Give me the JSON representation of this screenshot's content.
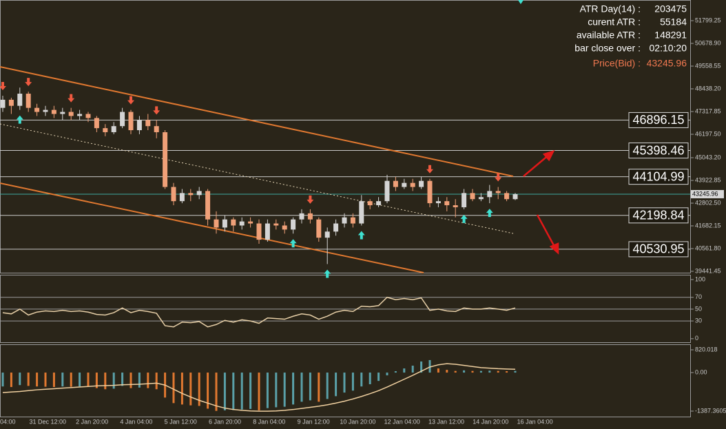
{
  "chart_data": {
    "type": "candlestick",
    "info": [
      {
        "label": "ATR Day(14) :",
        "value": 203475
      },
      {
        "label": "curent ATR :",
        "value": 55184
      },
      {
        "label": "available ATR :",
        "value": 148291
      },
      {
        "label": "bar close over :",
        "value": "02:10:20"
      }
    ],
    "price_label": "Price(Bid) :",
    "price": 43245.96,
    "ylim": [
      39340,
      52818
    ],
    "yticks": [
      51799.25,
      {
        "value": 50678.9,
        "label": "50678.90"
      },
      49558.55,
      {
        "value": 48438.2,
        "label": "48438.20"
      },
      47317.85,
      {
        "value": 46197.5,
        "label": "46197.50"
      },
      {
        "value": 45043.2,
        "label": "45043.20"
      },
      43922.85,
      {
        "value": 42802.5,
        "label": "42802.50"
      },
      41682.15,
      {
        "value": 40561.8,
        "label": "40561.80"
      },
      39441.45
    ],
    "levels": [
      46896.15,
      45398.46,
      44104.99,
      42198.84,
      40530.95
    ],
    "x_labels": [
      "04:00",
      "31 Dec 12:00",
      "2 Jan 20:00",
      "4 Jan 04:00",
      "5 Jan 12:00",
      "6 Jan 20:00",
      "8 Jan 04:00",
      "9 Jan 12:00",
      "10 Jan 20:00",
      "12 Jan 04:00",
      "13 Jan 12:00",
      "14 Jan 20:00",
      "16 Jan 04:00"
    ],
    "colors": {
      "up": "#d4d4d4",
      "down": "#f0a078",
      "price_line": "#3fa9a0",
      "buy": "#3fe0d0",
      "sell": "#f05a40",
      "rsi": "#e8d0a8",
      "macd_up": "#5aa0a8",
      "macd_down": "#e07830",
      "signal": "#f0d0a0"
    },
    "open": [
      47500,
      47900,
      47600,
      48200,
      47500,
      47300,
      47400,
      47200,
      47300,
      47100,
      47200,
      47000,
      46500,
      46300,
      46600,
      47300,
      46400,
      46900,
      46600,
      46300,
      43600,
      42900,
      43300,
      43200,
      43400,
      42000,
      41600,
      42000,
      41700,
      41900,
      41800,
      41000,
      41800,
      41700,
      41500,
      42000,
      42300,
      42000,
      41100,
      41400,
      41800,
      42100,
      41800,
      42900,
      42700,
      42900,
      43900,
      43600,
      43800,
      43600,
      43900,
      42800,
      42900,
      42700,
      42600,
      43300,
      43000,
      43100,
      43400,
      43300,
      43000
    ],
    "high": [
      48100,
      48000,
      48500,
      48300,
      47700,
      47600,
      47600,
      47500,
      47500,
      47400,
      47300,
      47100,
      46700,
      46800,
      47500,
      47400,
      47100,
      47200,
      46900,
      46400,
      43800,
      43500,
      43500,
      43600,
      43500,
      42400,
      42200,
      42100,
      42100,
      42100,
      42000,
      42000,
      42000,
      41900,
      42100,
      42500,
      42500,
      42100,
      41600,
      42000,
      42300,
      42300,
      43200,
      43000,
      43100,
      44200,
      44100,
      44000,
      44000,
      44100,
      44000,
      43100,
      43100,
      43000,
      43500,
      43500,
      43300,
      43700,
      43600,
      43400,
      43300
    ],
    "low": [
      47300,
      47200,
      47400,
      47300,
      47100,
      47100,
      47000,
      46900,
      46900,
      46900,
      46800,
      46300,
      46100,
      46200,
      46500,
      46200,
      46200,
      46400,
      46000,
      43500,
      42700,
      42800,
      42900,
      43000,
      41700,
      41300,
      41400,
      41400,
      41500,
      41600,
      40800,
      40900,
      41500,
      41300,
      41300,
      41800,
      41800,
      40900,
      39800,
      41200,
      41600,
      41600,
      41700,
      42500,
      42600,
      42800,
      43400,
      43500,
      43400,
      43500,
      42600,
      42600,
      42400,
      42100,
      42500,
      42900,
      42900,
      42800,
      43000,
      42900,
      42950
    ],
    "close": [
      47900,
      47600,
      48200,
      47500,
      47300,
      47400,
      47200,
      47300,
      47100,
      47200,
      47000,
      46500,
      46300,
      46600,
      47300,
      46400,
      46900,
      46600,
      46300,
      43600,
      42900,
      43300,
      43200,
      43400,
      42000,
      41600,
      42000,
      41700,
      41900,
      41800,
      41000,
      41800,
      41700,
      41500,
      42000,
      42300,
      42000,
      41100,
      41400,
      41800,
      42100,
      41800,
      42900,
      42700,
      42900,
      43900,
      43600,
      43800,
      43600,
      43900,
      42800,
      42900,
      42700,
      42600,
      43300,
      43000,
      43100,
      43400,
      43300,
      43000,
      43246
    ],
    "buy_signals": [
      2,
      34,
      38,
      42,
      54,
      57
    ],
    "sell_signals": [
      0,
      3,
      8,
      15,
      18,
      36,
      50,
      58
    ],
    "rsi": {
      "ylim": [
        -6,
        107
      ],
      "yticks": [
        100,
        70,
        50,
        30,
        0
      ],
      "levels": [
        70,
        50,
        30
      ],
      "values": [
        44,
        42,
        50,
        40,
        45,
        47,
        46,
        48,
        46,
        47,
        45,
        41,
        40,
        44,
        52,
        44,
        48,
        46,
        43,
        22,
        20,
        28,
        27,
        29,
        20,
        24,
        31,
        28,
        32,
        30,
        26,
        35,
        34,
        33,
        38,
        42,
        40,
        33,
        38,
        45,
        48,
        46,
        55,
        54,
        56,
        70,
        66,
        68,
        66,
        69,
        48,
        50,
        47,
        46,
        52,
        50,
        50,
        52,
        50,
        48,
        52
      ]
    },
    "macd": {
      "ylim": [
        -1586,
        1019
      ],
      "yticks": [
        820.018,
        {
          "value": 0,
          "label": "0.00"
        },
        -1387.3605
      ],
      "histogram": [
        -500,
        -520,
        -450,
        -480,
        -500,
        -510,
        -520,
        -500,
        -510,
        -500,
        -510,
        -560,
        -600,
        -580,
        -480,
        -560,
        -540,
        -560,
        -600,
        -900,
        -1100,
        -1150,
        -1180,
        -1200,
        -1300,
        -1380,
        -1360,
        -1350,
        -1330,
        -1310,
        -1360,
        -1280,
        -1250,
        -1230,
        -1150,
        -1050,
        -1000,
        -1050,
        -950,
        -850,
        -720,
        -650,
        -500,
        -420,
        -300,
        -100,
        50,
        150,
        250,
        400,
        450,
        150,
        100,
        60,
        80,
        60,
        60,
        70,
        60,
        50,
        60
      ],
      "signal": [
        -720,
        -700,
        -680,
        -650,
        -620,
        -600,
        -580,
        -560,
        -540,
        -520,
        -500,
        -480,
        -470,
        -460,
        -440,
        -430,
        -420,
        -400,
        -380,
        -450,
        -600,
        -750,
        -880,
        -1000,
        -1100,
        -1200,
        -1280,
        -1330,
        -1360,
        -1380,
        -1390,
        -1390,
        -1380,
        -1360,
        -1330,
        -1290,
        -1250,
        -1210,
        -1160,
        -1100,
        -1030,
        -950,
        -860,
        -760,
        -650,
        -520,
        -380,
        -240,
        -100,
        50,
        200,
        280,
        320,
        300,
        260,
        220,
        180,
        160,
        140,
        130,
        120
      ]
    }
  }
}
